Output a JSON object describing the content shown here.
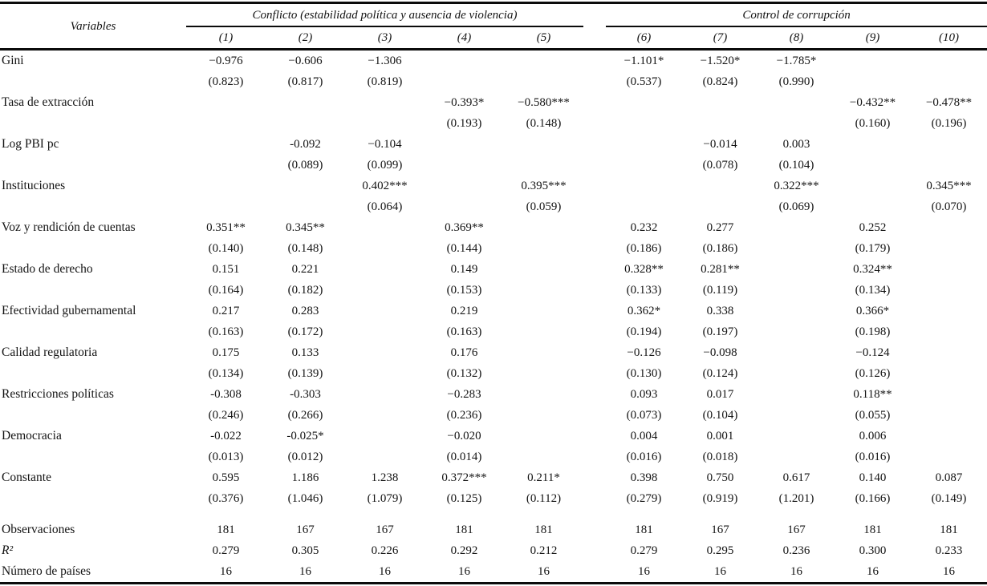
{
  "page": {
    "ink_color": "#141414",
    "rule_color": "#0b0b0b",
    "background_color": "#ffffff"
  },
  "table": {
    "variables_header": "Variables",
    "groups": [
      {
        "label": "Conflicto (estabilidad política y ausencia de violencia)",
        "cols": [
          "(1)",
          "(2)",
          "(3)",
          "(4)",
          "(5)"
        ]
      },
      {
        "label": "Control de corrupción",
        "cols": [
          "(6)",
          "(7)",
          "(8)",
          "(9)",
          "(10)"
        ]
      }
    ],
    "rows": [
      {
        "label": "Gini",
        "coef": [
          "−0.976",
          "−0.606",
          "−1.306",
          "",
          "",
          "−1.101*",
          "−1.520*",
          "−1.785*",
          "",
          ""
        ],
        "se": [
          "(0.823)",
          "(0.817)",
          "(0.819)",
          "",
          "",
          "(0.537)",
          "(0.824)",
          "(0.990)",
          "",
          ""
        ]
      },
      {
        "label": "Tasa de extracción",
        "coef": [
          "",
          "",
          "",
          "−0.393*",
          "−0.580***",
          "",
          "",
          "",
          "−0.432**",
          "−0.478**"
        ],
        "se": [
          "",
          "",
          "",
          "(0.193)",
          "(0.148)",
          "",
          "",
          "",
          "(0.160)",
          "(0.196)"
        ]
      },
      {
        "label": "Log PBI pc",
        "coef": [
          "",
          "-0.092",
          "−0.104",
          "",
          "",
          "",
          "−0.014",
          "0.003",
          "",
          ""
        ],
        "se": [
          "",
          "(0.089)",
          "(0.099)",
          "",
          "",
          "",
          "(0.078)",
          "(0.104)",
          "",
          ""
        ]
      },
      {
        "label": "Instituciones",
        "coef": [
          "",
          "",
          "0.402***",
          "",
          "0.395***",
          "",
          "",
          "0.322***",
          "",
          "0.345***"
        ],
        "se": [
          "",
          "",
          "(0.064)",
          "",
          "(0.059)",
          "",
          "",
          "(0.069)",
          "",
          "(0.070)"
        ]
      },
      {
        "label": "Voz y rendición de cuentas",
        "coef": [
          "0.351**",
          "0.345**",
          "",
          "0.369**",
          "",
          "0.232",
          "0.277",
          "",
          "0.252",
          ""
        ],
        "se": [
          "(0.140)",
          "(0.148)",
          "",
          "(0.144)",
          "",
          "(0.186)",
          "(0.186)",
          "",
          "(0.179)",
          ""
        ]
      },
      {
        "label": "Estado de derecho",
        "coef": [
          "0.151",
          "0.221",
          "",
          "0.149",
          "",
          "0.328**",
          "0.281**",
          "",
          "0.324**",
          ""
        ],
        "se": [
          "(0.164)",
          "(0.182)",
          "",
          "(0.153)",
          "",
          "(0.133)",
          "(0.119)",
          "",
          "(0.134)",
          ""
        ]
      },
      {
        "label": "Efectividad gubernamental",
        "coef": [
          "0.217",
          "0.283",
          "",
          "0.219",
          "",
          "0.362*",
          "0.338",
          "",
          "0.366*",
          ""
        ],
        "se": [
          "(0.163)",
          "(0.172)",
          "",
          "(0.163)",
          "",
          "(0.194)",
          "(0.197)",
          "",
          "(0.198)",
          ""
        ]
      },
      {
        "label": "Calidad regulatoria",
        "coef": [
          "0.175",
          "0.133",
          "",
          "0.176",
          "",
          "−0.126",
          "−0.098",
          "",
          "−0.124",
          ""
        ],
        "se": [
          "(0.134)",
          "(0.139)",
          "",
          "(0.132)",
          "",
          "(0.130)",
          "(0.124)",
          "",
          "(0.126)",
          ""
        ]
      },
      {
        "label": "Restricciones políticas",
        "coef": [
          "-0.308",
          "-0.303",
          "",
          "−0.283",
          "",
          "0.093",
          "0.017",
          "",
          "0.118**",
          ""
        ],
        "se": [
          "(0.246)",
          "(0.266)",
          "",
          "(0.236)",
          "",
          "(0.073)",
          "(0.104)",
          "",
          "(0.055)",
          ""
        ]
      },
      {
        "label": "Democracia",
        "coef": [
          "-0.022",
          "-0.025*",
          "",
          "−0.020",
          "",
          "0.004",
          "0.001",
          "",
          "0.006",
          ""
        ],
        "se": [
          "(0.013)",
          "(0.012)",
          "",
          "(0.014)",
          "",
          "(0.016)",
          "(0.018)",
          "",
          "(0.016)",
          ""
        ]
      },
      {
        "label": "Constante",
        "coef": [
          "0.595",
          "1.186",
          "1.238",
          "0.372***",
          "0.211*",
          "0.398",
          "0.750",
          "0.617",
          "0.140",
          "0.087"
        ],
        "se": [
          "(0.376)",
          "(1.046)",
          "(1.079)",
          "(0.125)",
          "(0.112)",
          "(0.279)",
          "(0.919)",
          "(1.201)",
          "(0.166)",
          "(0.149)"
        ]
      }
    ],
    "stats": [
      {
        "label": "Observaciones",
        "italic": false,
        "values": [
          "181",
          "167",
          "167",
          "181",
          "181",
          "181",
          "167",
          "167",
          "181",
          "181"
        ]
      },
      {
        "label": "R²",
        "italic": true,
        "values": [
          "0.279",
          "0.305",
          "0.226",
          "0.292",
          "0.212",
          "0.279",
          "0.295",
          "0.236",
          "0.300",
          "0.233"
        ]
      },
      {
        "label": "Número de países",
        "italic": false,
        "values": [
          "16",
          "16",
          "16",
          "16",
          "16",
          "16",
          "16",
          "16",
          "16",
          "16"
        ]
      }
    ]
  }
}
